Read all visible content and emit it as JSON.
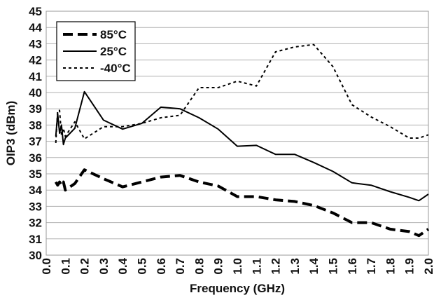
{
  "chart_data": {
    "type": "line",
    "xlabel": "Frequency (GHz)",
    "ylabel": "OIP3 (dBm)",
    "xlim": [
      0.0,
      2.0
    ],
    "ylim": [
      30,
      45
    ],
    "xticks": [
      "0.0",
      "0.1",
      "0.2",
      "0.3",
      "0.4",
      "0.5",
      "0.6",
      "0.7",
      "0.8",
      "0.9",
      "1.0",
      "1.1",
      "1.2",
      "1.3",
      "1.4",
      "1.5",
      "1.6",
      "1.7",
      "1.8",
      "1.9",
      "2.0"
    ],
    "yticks": [
      "30",
      "31",
      "32",
      "33",
      "34",
      "35",
      "36",
      "37",
      "38",
      "39",
      "40",
      "41",
      "42",
      "43",
      "44",
      "45"
    ],
    "grid": "horizontal",
    "legend_position": "top-left",
    "series": [
      {
        "name": "85°C",
        "style": "long-dash",
        "color": "#000000",
        "x": [
          0.05,
          0.06,
          0.07,
          0.08,
          0.09,
          0.1,
          0.15,
          0.2,
          0.3,
          0.4,
          0.5,
          0.6,
          0.7,
          0.8,
          0.9,
          1.0,
          1.1,
          1.2,
          1.3,
          1.4,
          1.5,
          1.6,
          1.7,
          1.8,
          1.9,
          1.95,
          2.0
        ],
        "y": [
          34.5,
          34.3,
          34.5,
          34.3,
          34.5,
          34.0,
          34.4,
          35.25,
          34.7,
          34.2,
          34.5,
          34.8,
          34.9,
          34.5,
          34.25,
          33.6,
          33.6,
          33.4,
          33.3,
          33.05,
          32.6,
          32.0,
          32.0,
          31.6,
          31.45,
          31.2,
          31.6
        ]
      },
      {
        "name": "25°C",
        "style": "solid",
        "color": "#000000",
        "x": [
          0.05,
          0.06,
          0.07,
          0.08,
          0.09,
          0.1,
          0.15,
          0.2,
          0.3,
          0.4,
          0.5,
          0.6,
          0.7,
          0.8,
          0.9,
          1.0,
          1.1,
          1.2,
          1.3,
          1.4,
          1.5,
          1.6,
          1.7,
          1.8,
          1.9,
          1.95,
          2.0
        ],
        "y": [
          37.3,
          38.7,
          37.5,
          38.0,
          36.8,
          37.2,
          37.8,
          40.05,
          38.3,
          37.75,
          38.1,
          39.1,
          39.0,
          38.45,
          37.75,
          36.7,
          36.75,
          36.2,
          36.2,
          35.7,
          35.15,
          34.45,
          34.3,
          33.9,
          33.55,
          33.35,
          33.75
        ]
      },
      {
        "name": "-40°C",
        "style": "short-dash",
        "color": "#000000",
        "x": [
          0.05,
          0.06,
          0.07,
          0.08,
          0.09,
          0.1,
          0.15,
          0.2,
          0.3,
          0.4,
          0.5,
          0.6,
          0.7,
          0.8,
          0.9,
          1.0,
          1.1,
          1.2,
          1.3,
          1.4,
          1.5,
          1.6,
          1.7,
          1.8,
          1.9,
          1.95,
          2.0
        ],
        "y": [
          36.9,
          38.9,
          38.9,
          37.4,
          37.8,
          37.3,
          38.2,
          37.15,
          37.9,
          37.9,
          38.1,
          38.45,
          38.6,
          40.3,
          40.3,
          40.7,
          40.4,
          42.5,
          42.8,
          42.95,
          41.6,
          39.25,
          38.5,
          37.9,
          37.2,
          37.2,
          37.4
        ]
      }
    ]
  }
}
